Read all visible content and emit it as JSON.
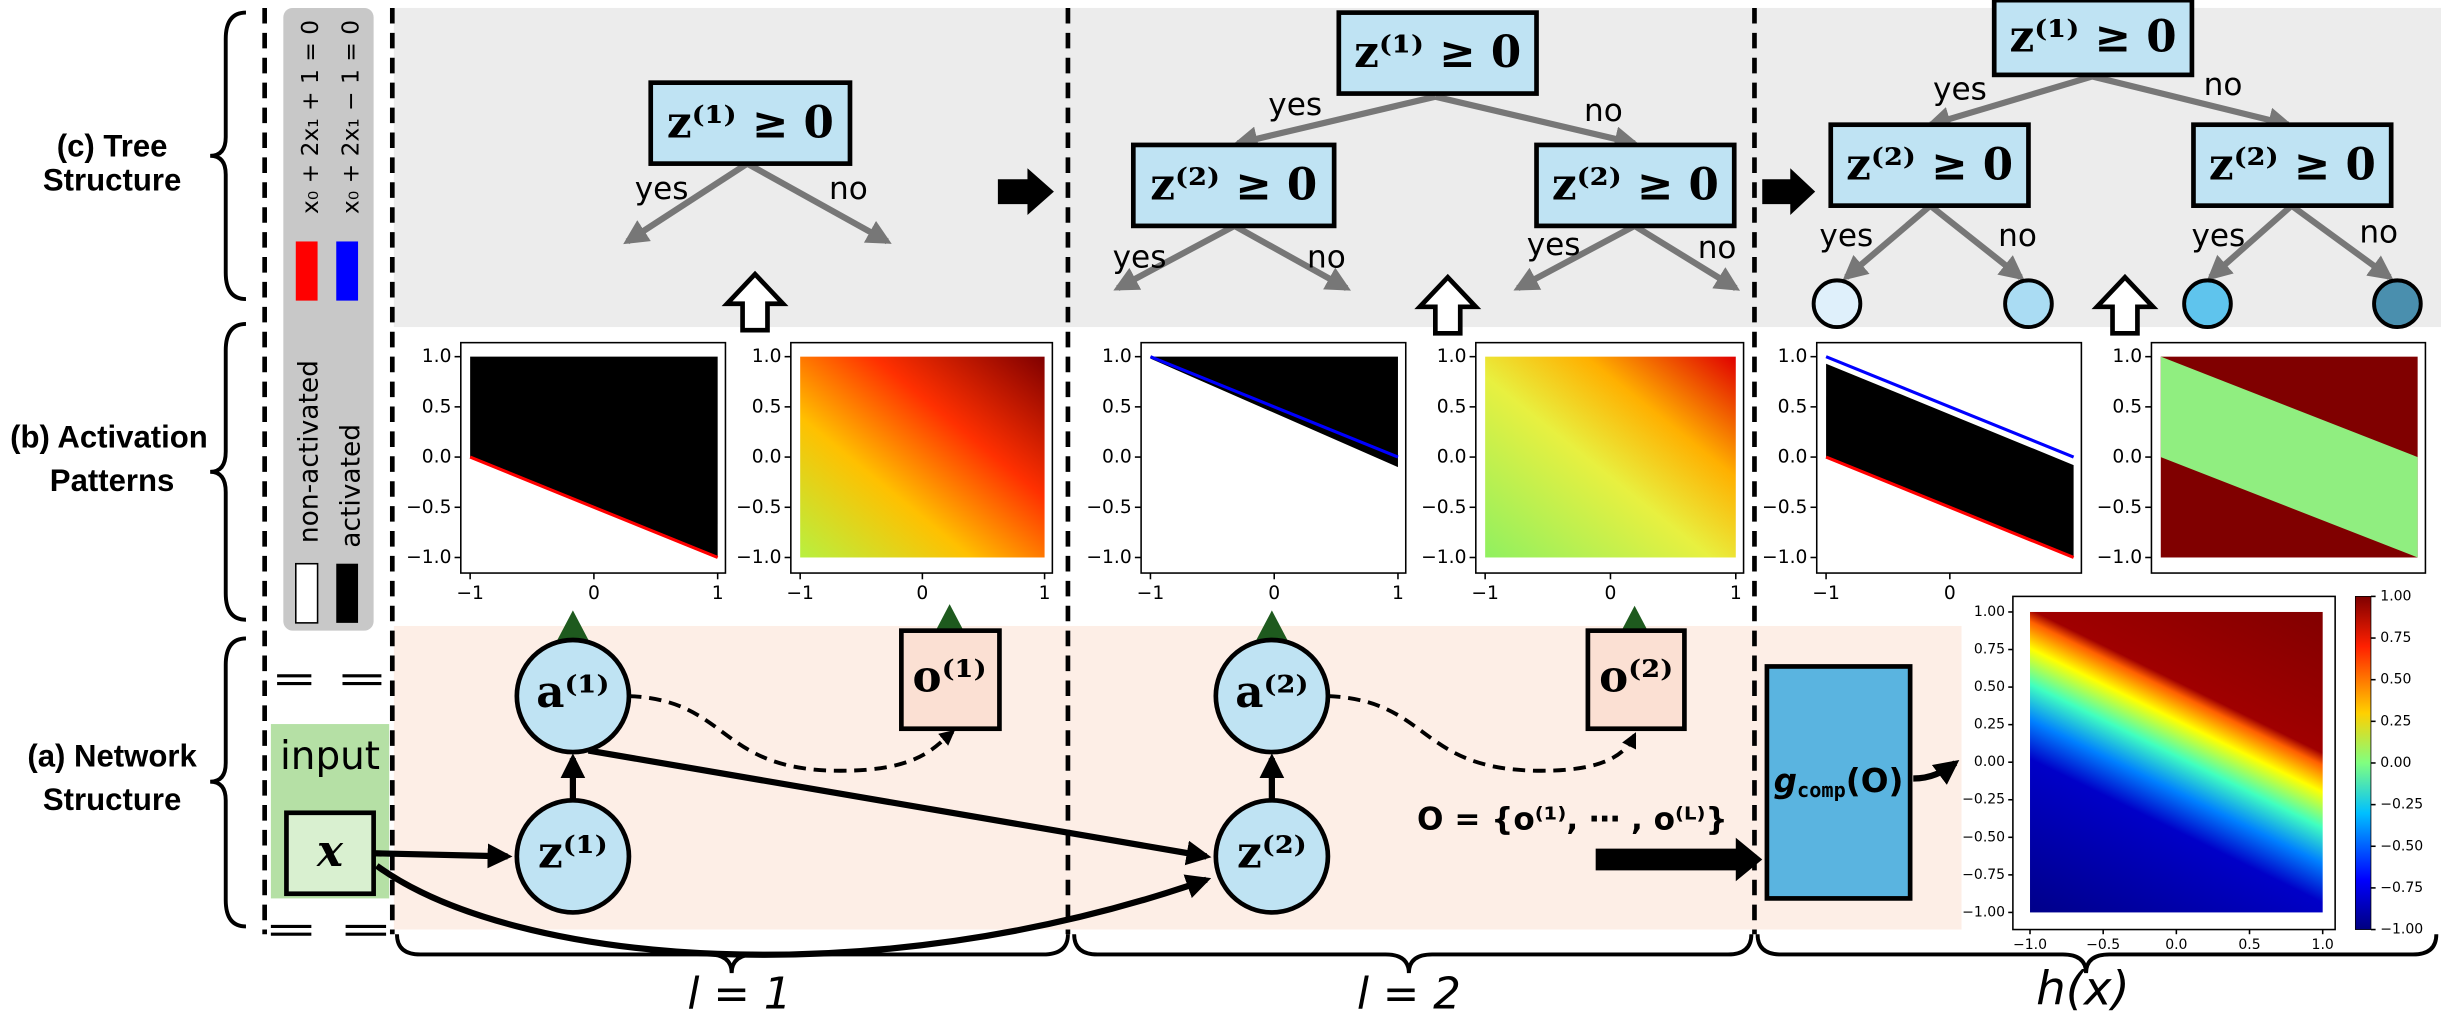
{
  "row_labels": [
    [
      "(c) Tree",
      "Structure"
    ],
    [
      "(b) Activation",
      "Patterns"
    ],
    [
      "(a) Network",
      "Structure"
    ]
  ],
  "legend": {
    "lines": [
      "x₀ + 2x₁ + 1 = 0",
      "x₀ + 2x₁ − 1 = 0"
    ],
    "activation": [
      "non-activated",
      "activated"
    ]
  },
  "trees": [
    {
      "nodes": [
        "z⁽¹⁾ ≥ 0"
      ],
      "edges": [
        "yes",
        "no"
      ]
    },
    {
      "nodes": [
        "z⁽¹⁾ ≥ 0",
        "z⁽²⁾ ≥ 0",
        "z⁽²⁾ ≥ 0"
      ],
      "edges": [
        "yes",
        "no",
        "yes",
        "no",
        "yes",
        "no"
      ]
    },
    {
      "nodes": [
        "z⁽¹⁾ ≥ 0",
        "z⁽²⁾ ≥ 0",
        "z⁽²⁾ ≥ 0"
      ],
      "edges": [
        "yes",
        "no",
        "yes",
        "no",
        "yes",
        "no"
      ]
    }
  ],
  "plots": [
    {
      "yticks": [
        "1.0",
        "0.5",
        "0.0",
        "−0.5",
        "−1.0"
      ],
      "xticks": [
        "−1",
        "0",
        "1"
      ]
    },
    {
      "yticks": [
        "1.0",
        "0.5",
        "0.0",
        "−0.5",
        "−1.0"
      ],
      "xticks": [
        "−1",
        "0",
        "1"
      ]
    },
    {
      "yticks": [
        "1.0",
        "0.5",
        "0.0",
        "−0.5",
        "−1.0"
      ],
      "xticks": [
        "−1",
        "0",
        "1"
      ]
    },
    {
      "yticks": [
        "1.0",
        "0.5",
        "0.0",
        "−0.5",
        "−1.0"
      ],
      "xticks": [
        "−1",
        "0",
        "1"
      ]
    },
    {
      "yticks": [
        "1.0",
        "0.5",
        "0.0",
        "−0.5",
        "−1.0"
      ],
      "xticks": [
        "−1",
        "0"
      ]
    },
    {
      "yticks": [
        "1.0",
        "0.5",
        "0.0",
        "−0.5",
        "−1.0"
      ],
      "xticks": []
    }
  ],
  "output_plot": {
    "yticks": [
      "1.00",
      "0.75",
      "0.50",
      "0.25",
      "0.00",
      "−0.25",
      "−0.50",
      "−0.75",
      "−1.00"
    ],
    "xticks": [
      "−1.0",
      "−0.5",
      "0.0",
      "0.5",
      "1.0"
    ],
    "colorbar_ticks": [
      "1.00",
      "0.75",
      "0.50",
      "0.25",
      "0.00",
      "−0.25",
      "−0.50",
      "−0.75",
      "−1.00"
    ]
  },
  "network": {
    "input": "input",
    "x": "x",
    "a1": "a⁽¹⁾",
    "o1": "o⁽¹⁾",
    "z1": "z⁽¹⁾",
    "a2": "a⁽²⁾",
    "o2": "o⁽²⁾",
    "z2": "z⁽²⁾",
    "O_set": "O = {o⁽¹⁾, ⋯ , o⁽ᴸ⁾}",
    "g_main": "g",
    "g_sub": "comp",
    "g_arg": "(O)"
  },
  "layers": [
    "l = 1",
    "l = 2",
    "h(x)"
  ]
}
